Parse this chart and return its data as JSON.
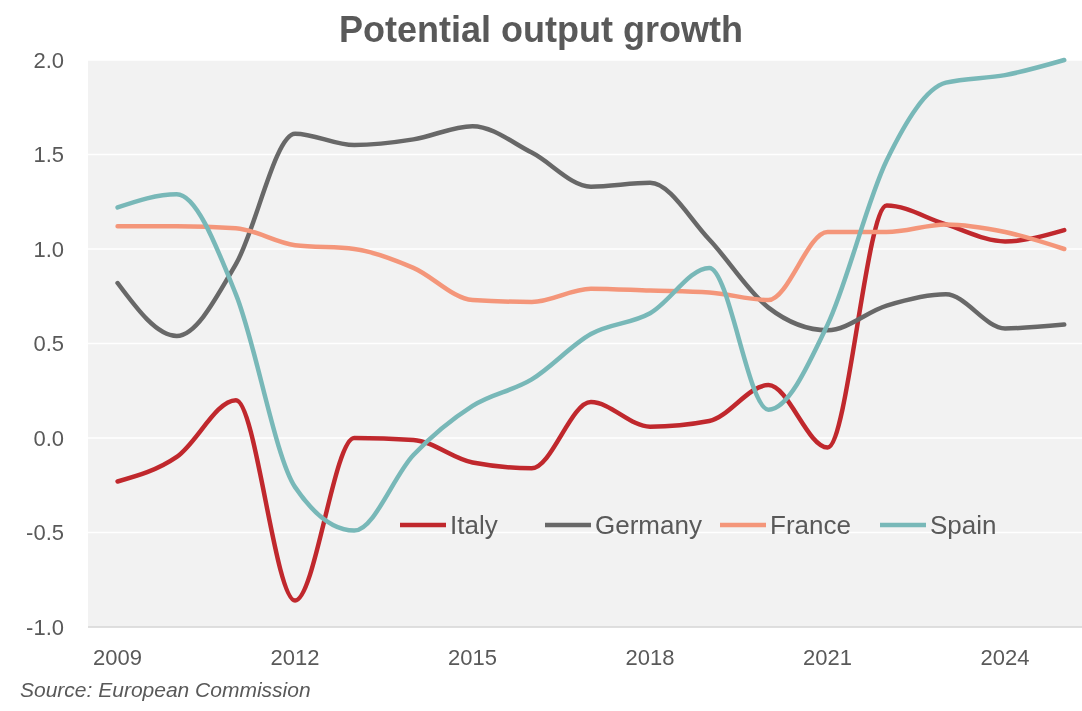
{
  "chart_data": {
    "type": "line",
    "title": "Potential output growth",
    "annotations": [
      "Source: European Commission"
    ],
    "x": [
      2009,
      2010,
      2011,
      2012,
      2013,
      2014,
      2015,
      2016,
      2017,
      2018,
      2019,
      2020,
      2021,
      2022,
      2023,
      2024,
      2025
    ],
    "series": [
      {
        "name": "Italy",
        "color": "#c0282d",
        "values": [
          -0.23,
          -0.1,
          0.2,
          -0.86,
          0.0,
          -0.01,
          -0.13,
          -0.16,
          0.19,
          0.06,
          0.09,
          0.28,
          -0.05,
          1.23,
          1.13,
          1.04,
          1.1
        ]
      },
      {
        "name": "Germany",
        "color": "#686868",
        "values": [
          0.82,
          0.54,
          0.92,
          1.61,
          1.55,
          1.58,
          1.65,
          1.51,
          1.33,
          1.35,
          1.05,
          0.69,
          0.57,
          0.7,
          0.76,
          0.58,
          0.6
        ]
      },
      {
        "name": "France",
        "color": "#f4967a",
        "values": [
          1.12,
          1.12,
          1.11,
          1.02,
          1.0,
          0.9,
          0.73,
          0.72,
          0.79,
          0.78,
          0.77,
          0.73,
          1.09,
          1.09,
          1.13,
          1.09,
          1.0
        ]
      },
      {
        "name": "Spain",
        "color": "#78b8b8",
        "values": [
          1.22,
          1.29,
          0.76,
          -0.26,
          -0.49,
          -0.09,
          0.17,
          0.31,
          0.55,
          0.66,
          0.9,
          0.15,
          0.6,
          1.47,
          1.88,
          1.92,
          2.0
        ]
      }
    ],
    "xlim": [
      2008.5,
      2025.3
    ],
    "xticks": [
      2009,
      2012,
      2015,
      2018,
      2021,
      2024
    ],
    "ylim": [
      -1,
      2
    ],
    "yticks": [
      {
        "value": -1,
        "label": "-1.0"
      },
      -0.5,
      {
        "value": 0,
        "label": "0.0"
      },
      0.5,
      {
        "value": 1,
        "label": "1.0"
      },
      1.5,
      {
        "value": 2,
        "label": "2.0"
      }
    ],
    "grid": "y",
    "legend": "bottom right",
    "line_style": "solid"
  }
}
